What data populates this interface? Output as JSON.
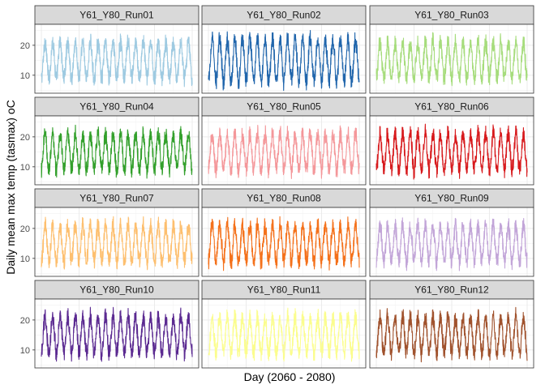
{
  "chart_data": {
    "type": "line",
    "facet_layout": "4 rows x 3 columns",
    "xlabel": "Day (2060 - 2080)",
    "ylabel": "Daily mean max temp (tasmax) oC",
    "x_range_years": [
      2060,
      2080
    ],
    "ylim": [
      4,
      27
    ],
    "y_ticks": [
      10,
      20
    ],
    "grid": true,
    "legend": "none",
    "seasonal_cycles": 20,
    "panels": [
      {
        "name": "Y61_Y80_Run01",
        "color": "#9ecae1",
        "min": 5,
        "max": 26,
        "seasonal_low": 9,
        "seasonal_high": 21
      },
      {
        "name": "Y61_Y80_Run02",
        "color": "#2166ac",
        "min": 4,
        "max": 26,
        "seasonal_low": 8,
        "seasonal_high": 22
      },
      {
        "name": "Y61_Y80_Run03",
        "color": "#a6dc7c",
        "min": 5,
        "max": 25,
        "seasonal_low": 9,
        "seasonal_high": 21
      },
      {
        "name": "Y61_Y80_Run04",
        "color": "#33a02c",
        "min": 4,
        "max": 26,
        "seasonal_low": 9,
        "seasonal_high": 21
      },
      {
        "name": "Y61_Y80_Run05",
        "color": "#f4979a",
        "min": 5,
        "max": 26,
        "seasonal_low": 9,
        "seasonal_high": 21
      },
      {
        "name": "Y61_Y80_Run06",
        "color": "#d7191c",
        "min": 5,
        "max": 26,
        "seasonal_low": 9,
        "seasonal_high": 21
      },
      {
        "name": "Y61_Y80_Run07",
        "color": "#fdbf6f",
        "min": 5,
        "max": 26,
        "seasonal_low": 9,
        "seasonal_high": 21
      },
      {
        "name": "Y61_Y80_Run08",
        "color": "#f4711b",
        "min": 5,
        "max": 25,
        "seasonal_low": 9,
        "seasonal_high": 21
      },
      {
        "name": "Y61_Y80_Run09",
        "color": "#c2a5d8",
        "min": 5,
        "max": 26,
        "seasonal_low": 9,
        "seasonal_high": 21
      },
      {
        "name": "Y61_Y80_Run10",
        "color": "#5b2a91",
        "min": 5,
        "max": 25,
        "seasonal_low": 9,
        "seasonal_high": 21
      },
      {
        "name": "Y61_Y80_Run11",
        "color": "#fbfd8e",
        "min": 6,
        "max": 26,
        "seasonal_low": 9,
        "seasonal_high": 21
      },
      {
        "name": "Y61_Y80_Run12",
        "color": "#a0522d",
        "min": 6,
        "max": 26,
        "seasonal_low": 9,
        "seasonal_high": 21
      }
    ]
  }
}
